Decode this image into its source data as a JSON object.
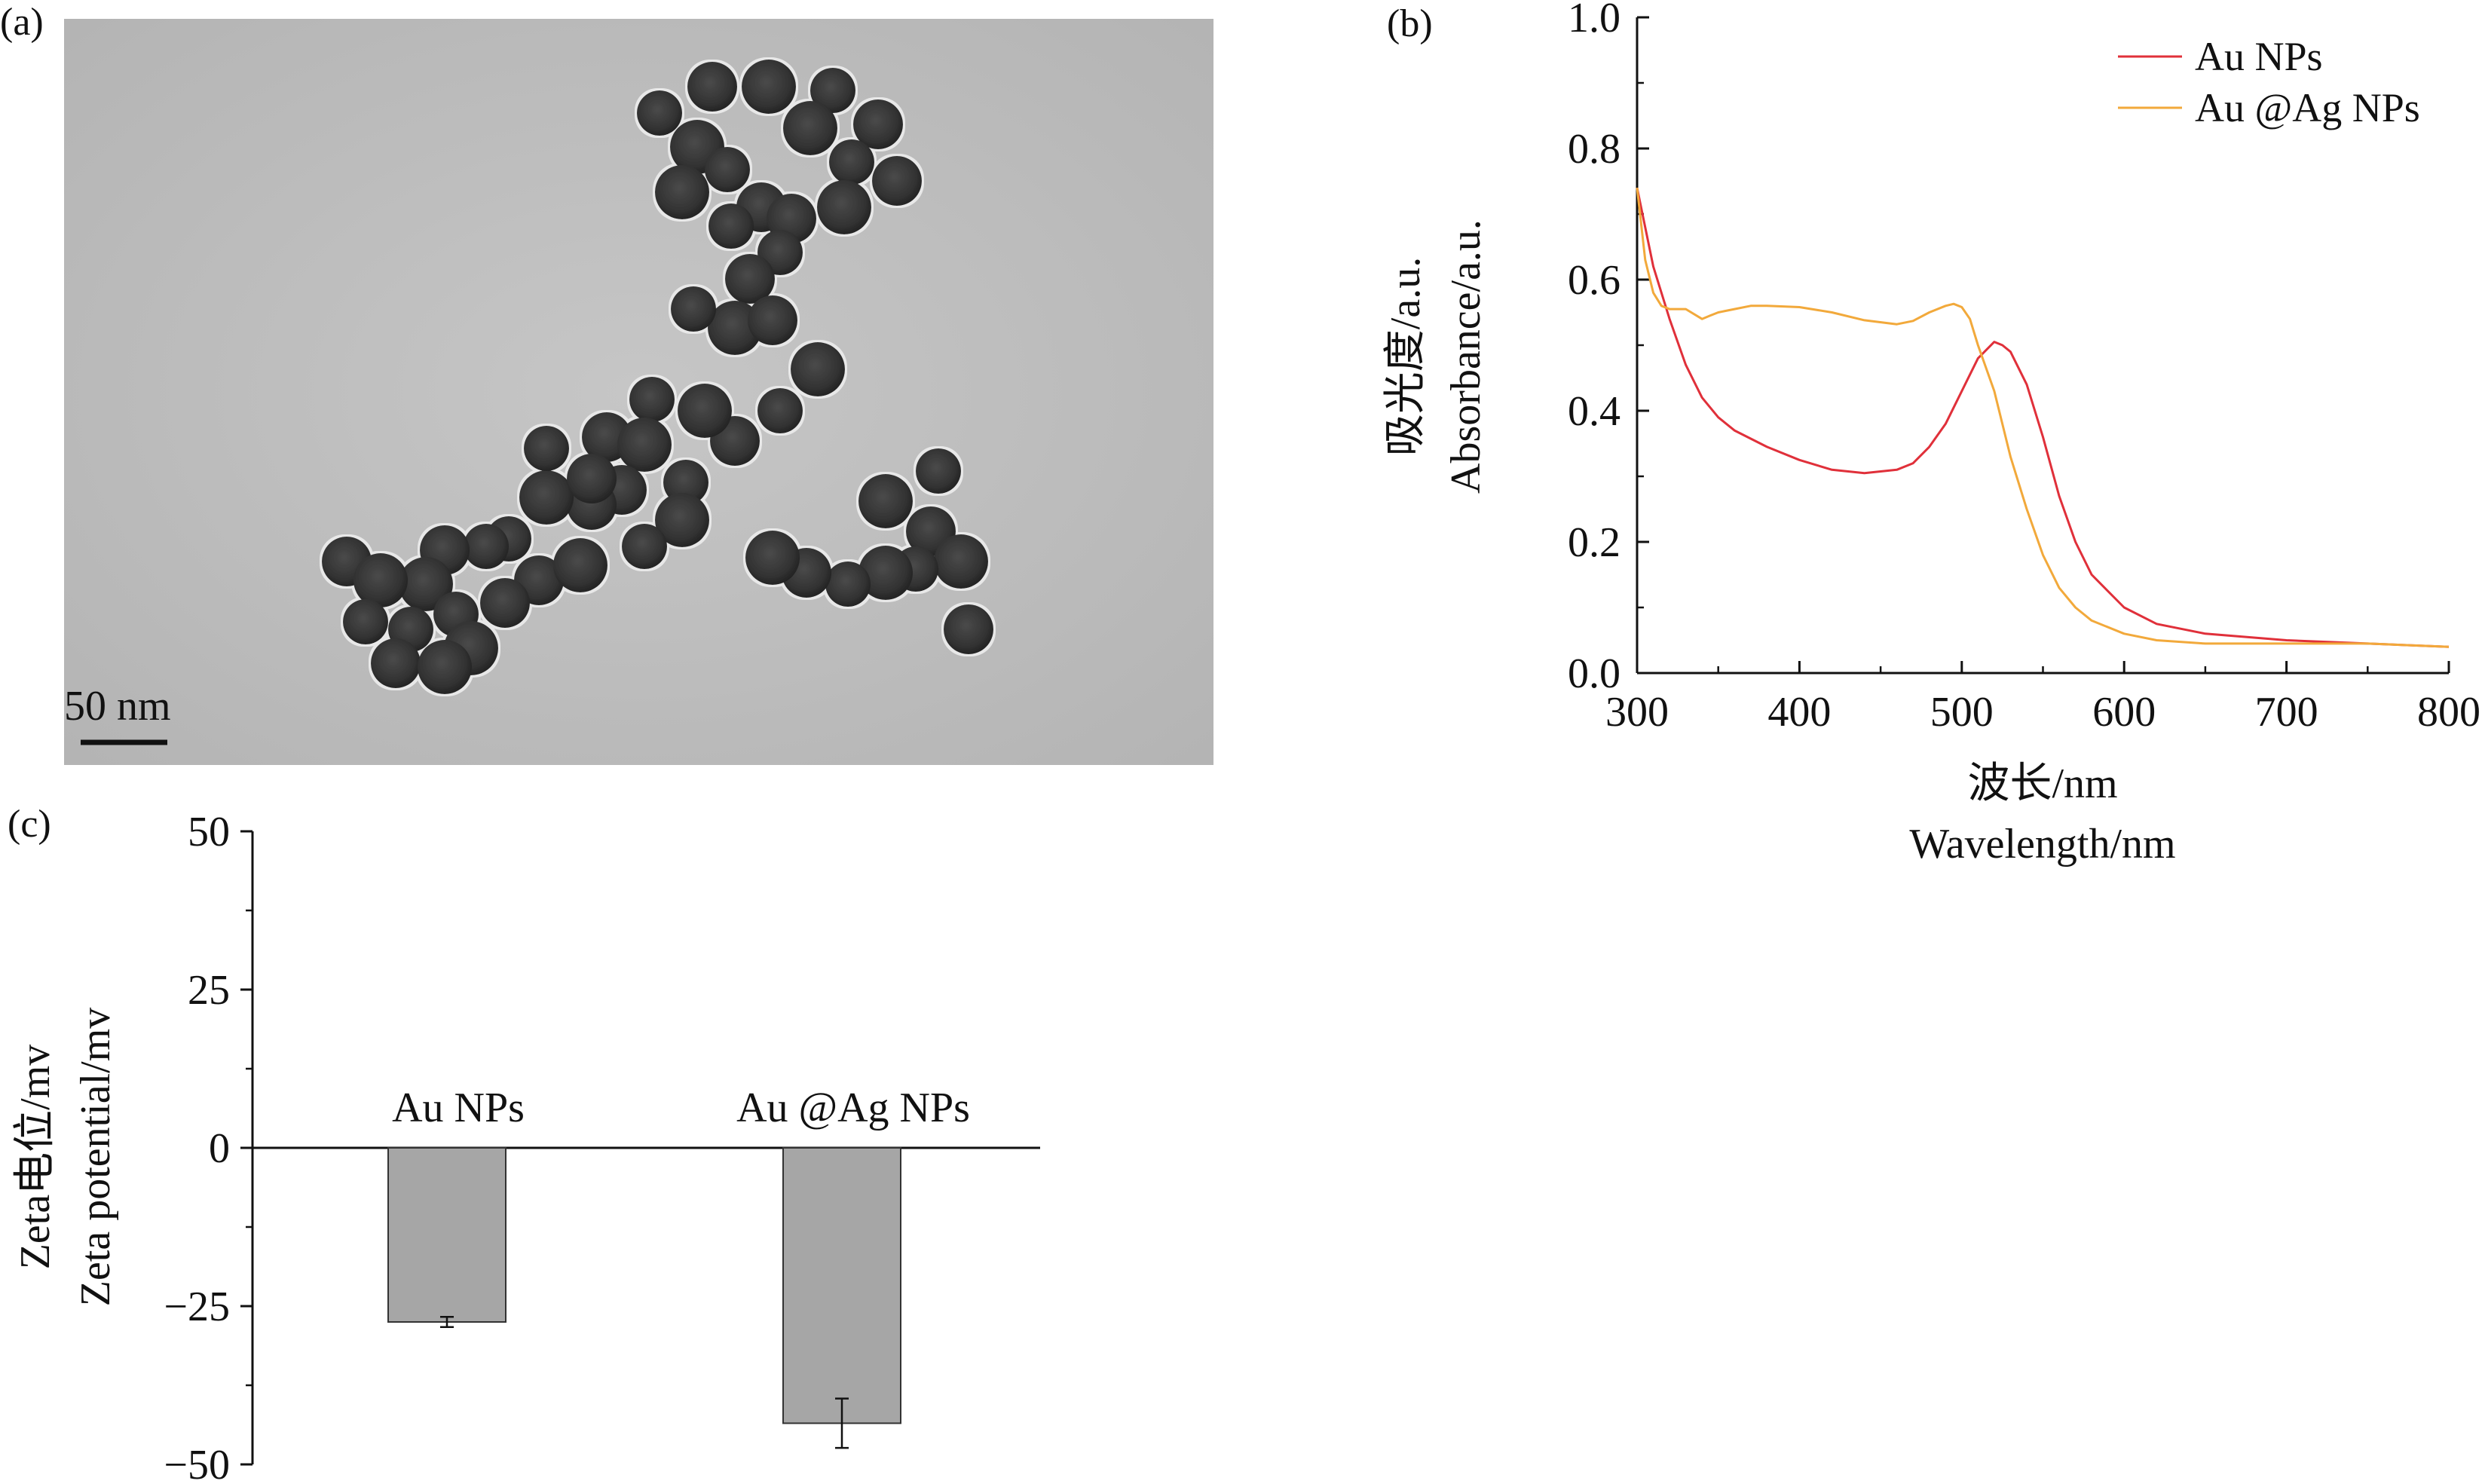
{
  "panels": {
    "a": {
      "label": "(a)",
      "scale_bar": "50 nm"
    },
    "b": {
      "label": "(b)"
    },
    "c": {
      "label": "(c)"
    }
  },
  "colors": {
    "au": "#e0303a",
    "auag": "#f2a93b",
    "bar": "#a6a6a6",
    "tem_bg": "#bdbdbd",
    "particle": "#3a3a3a"
  },
  "chart_data": [
    {
      "id": "b",
      "type": "line",
      "xlabel_cn": "波长/nm",
      "xlabel_en": "Wavelength/nm",
      "ylabel_cn": "吸光度/a.u.",
      "ylabel_en": "Absorbance/a.u.",
      "xlim": [
        300,
        800
      ],
      "ylim": [
        0.0,
        1.0
      ],
      "xticks": [
        "300",
        "400",
        "500",
        "600",
        "700",
        "800"
      ],
      "yticks": [
        "0.0",
        "0.2",
        "0.4",
        "0.6",
        "0.8",
        "1.0"
      ],
      "legend_position": "top-right",
      "series": [
        {
          "name": "Au NPs",
          "x": [
            300,
            310,
            320,
            330,
            340,
            350,
            360,
            380,
            400,
            420,
            440,
            460,
            470,
            480,
            490,
            500,
            510,
            520,
            525,
            530,
            540,
            550,
            560,
            570,
            580,
            600,
            620,
            650,
            700,
            750,
            800
          ],
          "y": [
            0.74,
            0.62,
            0.54,
            0.47,
            0.42,
            0.39,
            0.37,
            0.345,
            0.325,
            0.31,
            0.305,
            0.31,
            0.32,
            0.345,
            0.38,
            0.43,
            0.48,
            0.505,
            0.5,
            0.49,
            0.44,
            0.36,
            0.27,
            0.2,
            0.15,
            0.1,
            0.075,
            0.06,
            0.05,
            0.045,
            0.04
          ]
        },
        {
          "name": "Au @Ag NPs",
          "x": [
            300,
            305,
            310,
            315,
            320,
            330,
            340,
            345,
            350,
            360,
            370,
            380,
            400,
            420,
            440,
            460,
            470,
            480,
            490,
            495,
            500,
            505,
            510,
            520,
            530,
            540,
            550,
            560,
            570,
            580,
            600,
            620,
            650,
            700,
            750,
            800
          ],
          "y": [
            0.74,
            0.63,
            0.58,
            0.56,
            0.555,
            0.555,
            0.54,
            0.545,
            0.55,
            0.555,
            0.56,
            0.56,
            0.558,
            0.55,
            0.538,
            0.532,
            0.537,
            0.55,
            0.56,
            0.563,
            0.558,
            0.54,
            0.5,
            0.43,
            0.33,
            0.25,
            0.18,
            0.13,
            0.1,
            0.08,
            0.06,
            0.05,
            0.045,
            0.045,
            0.045,
            0.04
          ]
        }
      ]
    },
    {
      "id": "c",
      "type": "bar",
      "ylabel_cn": "Zeta电位/mv",
      "ylabel_en": "Zeta potential/mv",
      "ylim": [
        -50,
        50
      ],
      "yticks": [
        "−50",
        "−25",
        "0",
        "25",
        "50"
      ],
      "categories": [
        "Au NPs",
        "Au @Ag NPs"
      ],
      "values": [
        -27.5,
        -43.5
      ],
      "errors": [
        0.8,
        3.9
      ]
    }
  ]
}
